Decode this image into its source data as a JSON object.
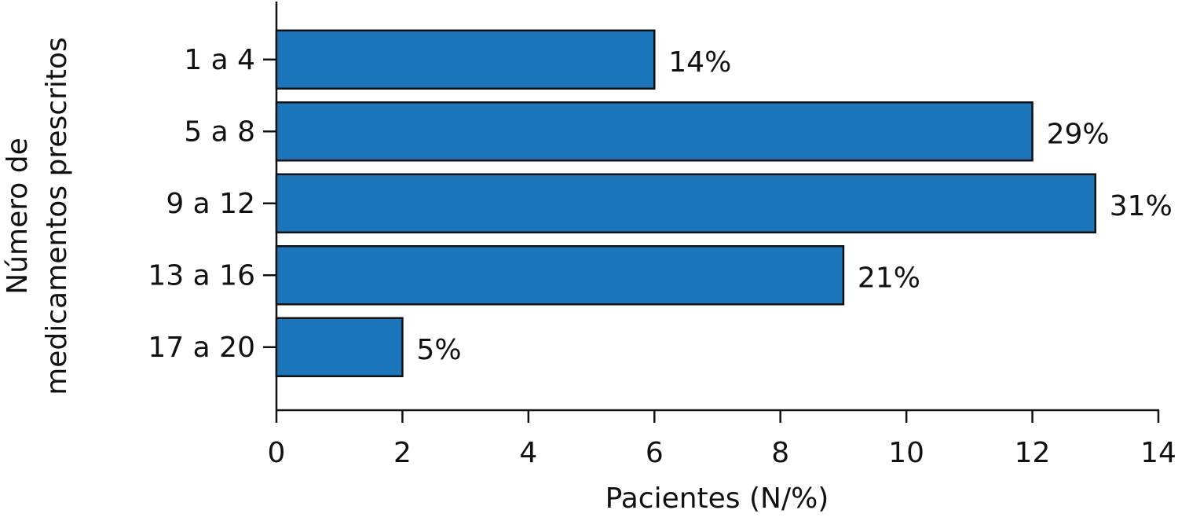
{
  "chart_data": {
    "type": "bar",
    "orientation": "horizontal",
    "ylabel": [
      "Número de",
      "medicamentos prescritos"
    ],
    "xlabel": "Pacientes (N/%)",
    "categories": [
      "1 a 4",
      "5 a 8",
      "9 a 12",
      "13 a 16",
      "17 a 20"
    ],
    "values": [
      6,
      12,
      13,
      9,
      2
    ],
    "percent_labels": [
      "14%",
      "29%",
      "31%",
      "21%",
      "5%"
    ],
    "color": "#1b75bb",
    "xlim": [
      0,
      14
    ],
    "xticks": [
      0,
      2,
      4,
      6,
      8,
      10,
      12,
      14
    ],
    "grid": false
  }
}
